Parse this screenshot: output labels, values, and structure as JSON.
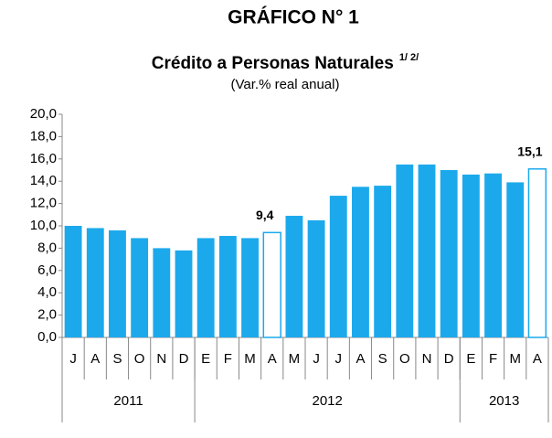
{
  "chart_data": {
    "type": "bar",
    "title": "GRÁFICO N° 1",
    "subtitle": "Crédito a Personas Naturales",
    "subtitle_note": "1/ 2/",
    "unit_label": "(Var.% real anual)",
    "categories": [
      "J",
      "A",
      "S",
      "O",
      "N",
      "D",
      "E",
      "F",
      "M",
      "A",
      "M",
      "J",
      "J",
      "A",
      "S",
      "O",
      "N",
      "D",
      "E",
      "F",
      "M",
      "A"
    ],
    "groups": [
      {
        "name": "2011",
        "count": 6
      },
      {
        "name": "2012",
        "count": 12
      },
      {
        "name": "2013",
        "count": 4
      }
    ],
    "values": [
      10.0,
      9.8,
      9.6,
      8.9,
      8.0,
      7.8,
      8.9,
      9.1,
      8.9,
      9.4,
      10.9,
      10.5,
      12.7,
      13.5,
      13.6,
      15.5,
      15.5,
      15.0,
      14.6,
      14.7,
      13.9,
      15.1
    ],
    "value_labels": [
      null,
      null,
      null,
      null,
      null,
      null,
      null,
      null,
      null,
      "9,4",
      null,
      null,
      null,
      null,
      null,
      null,
      null,
      null,
      null,
      null,
      null,
      "15,1"
    ],
    "color": "#1ca9ec",
    "ylim": [
      0,
      20
    ],
    "yticks": [
      {
        "value": 0,
        "label": "0,0"
      },
      {
        "value": 2,
        "label": "2,0"
      },
      {
        "value": 4,
        "label": "4,0"
      },
      {
        "value": 6,
        "label": "6,0"
      },
      {
        "value": 8,
        "label": "8,0"
      },
      {
        "value": 10,
        "label": "10,0"
      },
      {
        "value": 12,
        "label": "12,0"
      },
      {
        "value": 14,
        "label": "14,0"
      },
      {
        "value": 16,
        "label": "16,0"
      },
      {
        "value": 18,
        "label": "18,0"
      },
      {
        "value": 20,
        "label": "20,0"
      }
    ],
    "grid": false
  }
}
